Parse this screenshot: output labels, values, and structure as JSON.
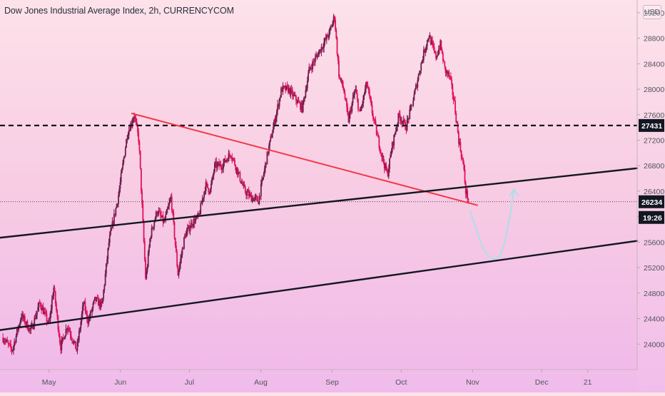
{
  "header": {
    "title": "Dow Jones Industrial Average Index, 2h, CURRENCYCOM",
    "currency": "USD"
  },
  "chart_data": {
    "type": "candlestick",
    "symbol": "Dow Jones Industrial Average Index",
    "interval": "2h",
    "source": "CURRENCYCOM",
    "title": "Dow Jones Industrial Average Index, 2h, CURRENCYCOM",
    "ylim": [
      23600,
      29400
    ],
    "y_ticks": [
      24000,
      24400,
      24800,
      25200,
      25600,
      26000,
      26400,
      26800,
      27200,
      27600,
      28000,
      28400,
      28800,
      29200
    ],
    "y_tick_labels": [
      "24000",
      "24400",
      "24800",
      "25200",
      "25600",
      "26000",
      "26400",
      "26800",
      "27200",
      "27600",
      "28000",
      "28400",
      "28800",
      "29200"
    ],
    "x_ticks": [
      {
        "label": "May",
        "day": 0
      },
      {
        "label": "Jun",
        "day": 31
      },
      {
        "label": "Jul",
        "day": 61
      },
      {
        "label": "Aug",
        "day": 92
      },
      {
        "label": "Sep",
        "day": 123
      },
      {
        "label": "Oct",
        "day": 153
      },
      {
        "label": "Nov",
        "day": 184
      },
      {
        "label": "Dec",
        "day": 214
      },
      {
        "label": "21",
        "day": 234
      }
    ],
    "xlim_days": [
      -21.3,
      255.5
    ],
    "price_anchors": [
      {
        "day": -20,
        "price": 24100
      },
      {
        "day": -16,
        "price": 23900
      },
      {
        "day": -12,
        "price": 24450
      },
      {
        "day": -8,
        "price": 24200
      },
      {
        "day": -4,
        "price": 24650
      },
      {
        "day": 0,
        "price": 24300
      },
      {
        "day": 2,
        "price": 24900
      },
      {
        "day": 5,
        "price": 23950
      },
      {
        "day": 8,
        "price": 24300
      },
      {
        "day": 12,
        "price": 23900
      },
      {
        "day": 15,
        "price": 24650
      },
      {
        "day": 17,
        "price": 24350
      },
      {
        "day": 20,
        "price": 24700
      },
      {
        "day": 23,
        "price": 24600
      },
      {
        "day": 26,
        "price": 25600
      },
      {
        "day": 30,
        "price": 26300
      },
      {
        "day": 34,
        "price": 27300
      },
      {
        "day": 37,
        "price": 27600
      },
      {
        "day": 39,
        "price": 27200
      },
      {
        "day": 42,
        "price": 25000
      },
      {
        "day": 44,
        "price": 25700
      },
      {
        "day": 47,
        "price": 26100
      },
      {
        "day": 50,
        "price": 25900
      },
      {
        "day": 53,
        "price": 26300
      },
      {
        "day": 56,
        "price": 25100
      },
      {
        "day": 59,
        "price": 25700
      },
      {
        "day": 62,
        "price": 25900
      },
      {
        "day": 65,
        "price": 26000
      },
      {
        "day": 68,
        "price": 26500
      },
      {
        "day": 70,
        "price": 26400
      },
      {
        "day": 72,
        "price": 26800
      },
      {
        "day": 75,
        "price": 26800
      },
      {
        "day": 79,
        "price": 27000
      },
      {
        "day": 82,
        "price": 26700
      },
      {
        "day": 85,
        "price": 26400
      },
      {
        "day": 88,
        "price": 26300
      },
      {
        "day": 91,
        "price": 26250
      },
      {
        "day": 95,
        "price": 27000
      },
      {
        "day": 98,
        "price": 27500
      },
      {
        "day": 101,
        "price": 28000
      },
      {
        "day": 104,
        "price": 28000
      },
      {
        "day": 107,
        "price": 27850
      },
      {
        "day": 110,
        "price": 27700
      },
      {
        "day": 113,
        "price": 28300
      },
      {
        "day": 116,
        "price": 28500
      },
      {
        "day": 119,
        "price": 28700
      },
      {
        "day": 122,
        "price": 28900
      },
      {
        "day": 124,
        "price": 29150
      },
      {
        "day": 126,
        "price": 28200
      },
      {
        "day": 128,
        "price": 28000
      },
      {
        "day": 130,
        "price": 27500
      },
      {
        "day": 133,
        "price": 28000
      },
      {
        "day": 135,
        "price": 27600
      },
      {
        "day": 138,
        "price": 28100
      },
      {
        "day": 140,
        "price": 27700
      },
      {
        "day": 143,
        "price": 27200
      },
      {
        "day": 145,
        "price": 26900
      },
      {
        "day": 147,
        "price": 26650
      },
      {
        "day": 149,
        "price": 27100
      },
      {
        "day": 152,
        "price": 27600
      },
      {
        "day": 155,
        "price": 27400
      },
      {
        "day": 158,
        "price": 27800
      },
      {
        "day": 161,
        "price": 28300
      },
      {
        "day": 163,
        "price": 28600
      },
      {
        "day": 165,
        "price": 28850
      },
      {
        "day": 168,
        "price": 28500
      },
      {
        "day": 170,
        "price": 28700
      },
      {
        "day": 172,
        "price": 28300
      },
      {
        "day": 174,
        "price": 28200
      },
      {
        "day": 176,
        "price": 27800
      },
      {
        "day": 178,
        "price": 27200
      },
      {
        "day": 180,
        "price": 26800
      },
      {
        "day": 181,
        "price": 26400
      },
      {
        "day": 182.5,
        "price": 26234
      }
    ],
    "trendlines": [
      {
        "name": "descending-resistance",
        "color": "#f23645",
        "width": 2,
        "from": {
          "day": 36,
          "price": 27620
        },
        "to": {
          "day": 186,
          "price": 26180
        }
      },
      {
        "name": "upper-channel-line",
        "color": "#131722",
        "width": 2.4,
        "from": {
          "day": -21.3,
          "price": 25670
        },
        "to": {
          "day": 255.5,
          "price": 26760
        }
      },
      {
        "name": "lower-channel-line",
        "color": "#131722",
        "width": 2.4,
        "from": {
          "day": -21.3,
          "price": 24220
        },
        "to": {
          "day": 255.5,
          "price": 25620
        }
      }
    ],
    "projection_path": {
      "name": "projected-bounce-path",
      "color": "#b8dbe8",
      "points": [
        {
          "day": 183,
          "price": 26080
        },
        {
          "day": 186,
          "price": 25750
        },
        {
          "day": 189,
          "price": 25450
        },
        {
          "day": 193,
          "price": 25310
        },
        {
          "day": 197,
          "price": 25420
        },
        {
          "day": 200,
          "price": 25950
        },
        {
          "day": 202,
          "price": 26430
        }
      ]
    },
    "horizontal_levels": [
      {
        "name": "resistance-level",
        "price": 27431,
        "label": "27431",
        "style": "dashed",
        "color": "#131722",
        "label_bg": "#131722"
      },
      {
        "name": "current-price",
        "price": 26234,
        "label": "26234",
        "style": "dotted",
        "color": "#131722",
        "label_bg": "#131722"
      }
    ],
    "countdown_label": "19:26",
    "candle_up_color": "#6f1d4d",
    "candle_down_color": "#e0125a",
    "resistance_line_color": "#f23645"
  }
}
